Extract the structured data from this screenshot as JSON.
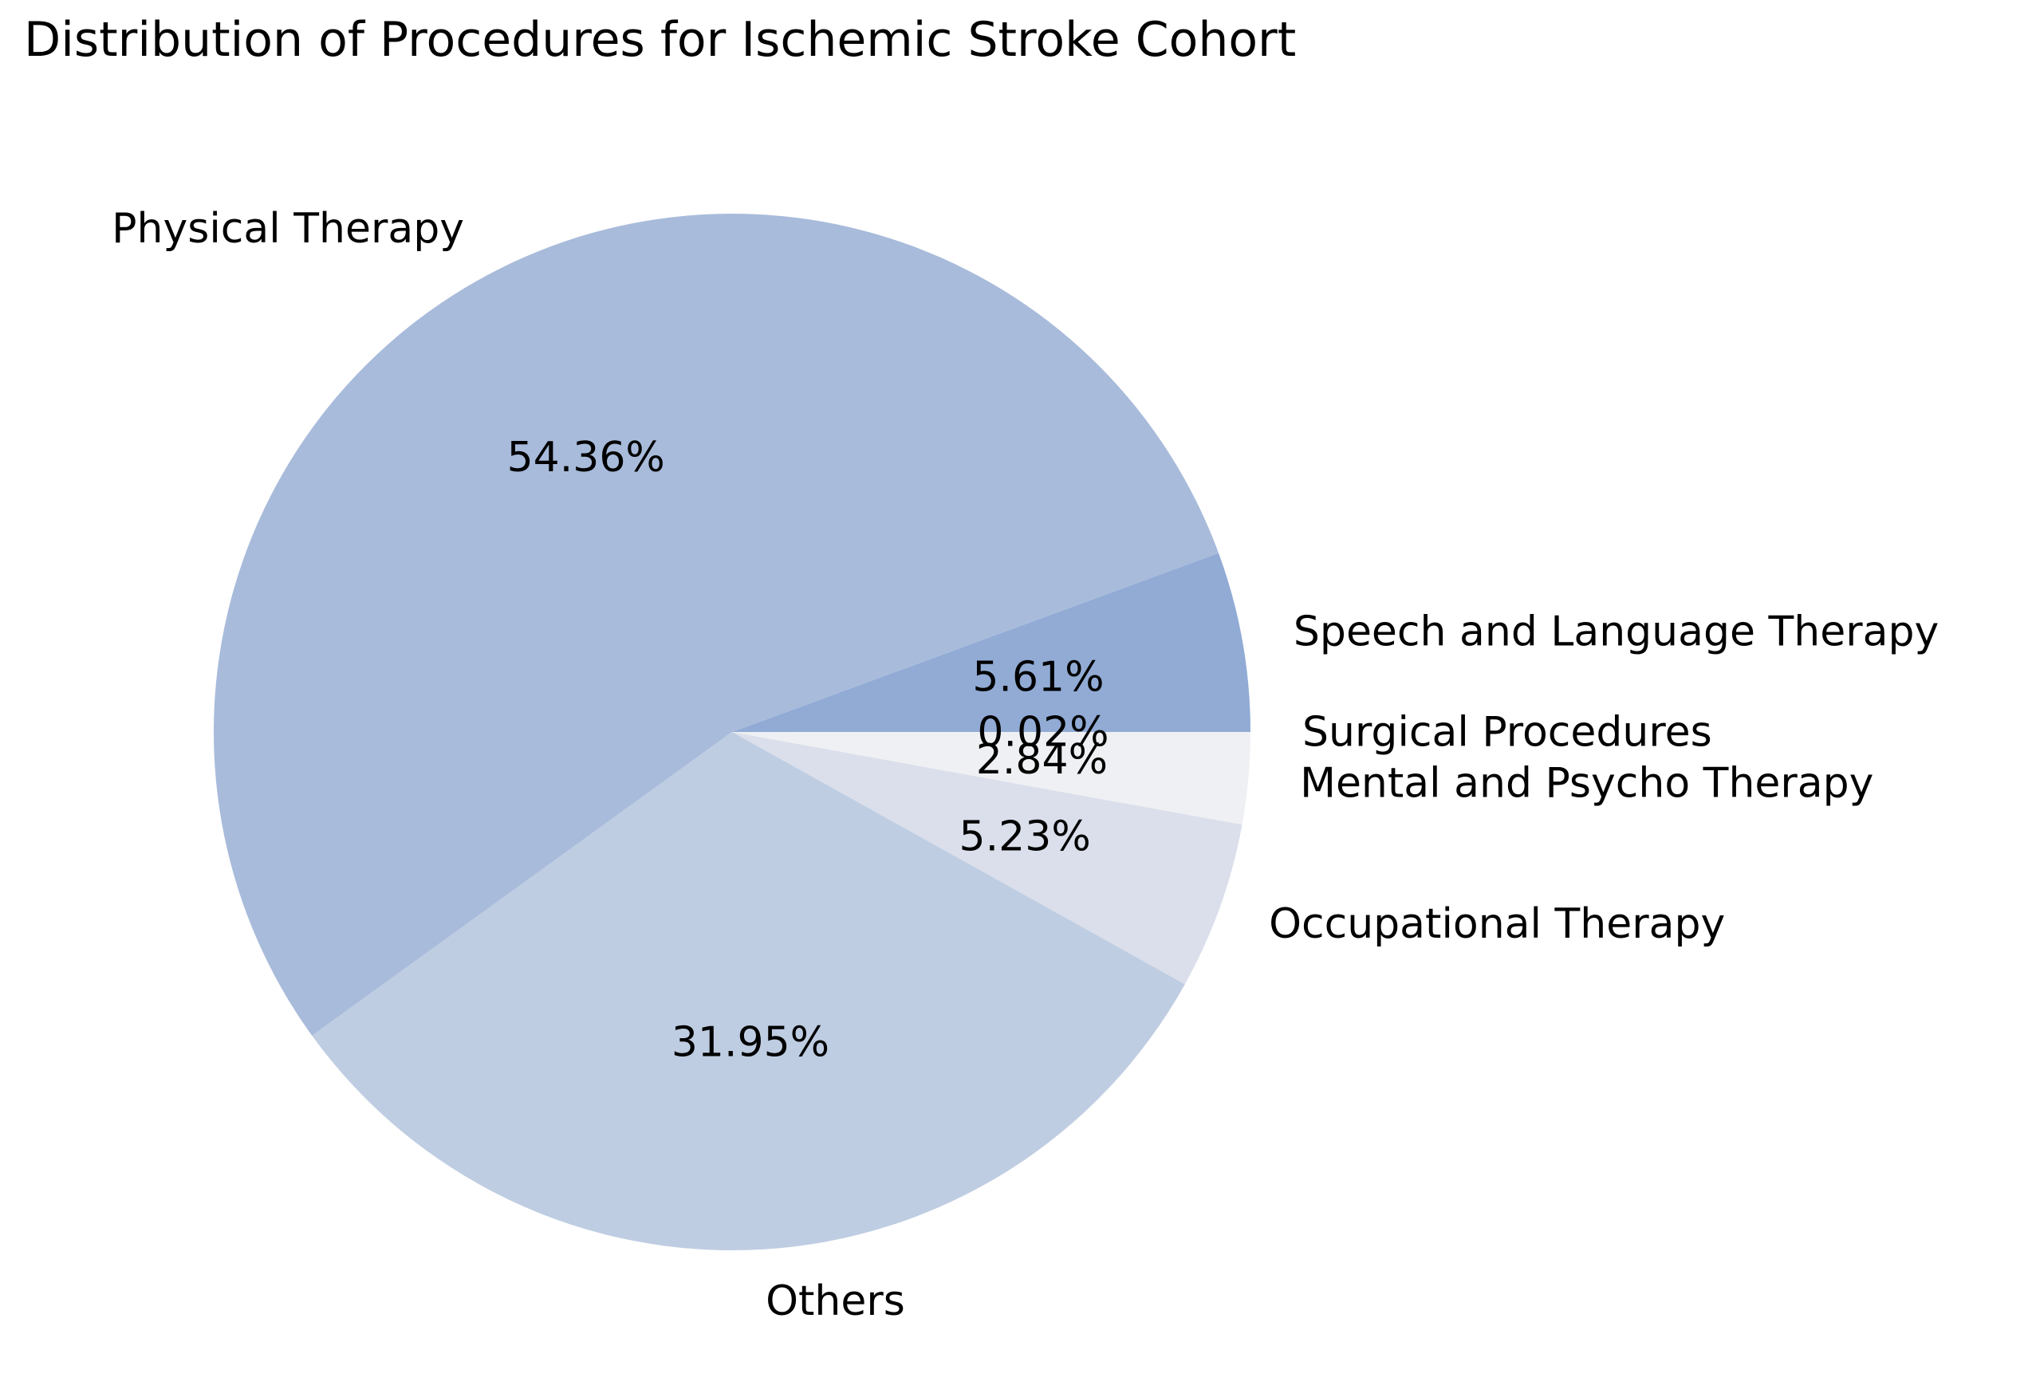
{
  "chart_data": {
    "type": "pie",
    "title": "Distribution of Procedures for Ischemic Stroke Cohort",
    "start_angle_deg": 0,
    "direction": "counterclockwise",
    "slices": [
      {
        "label": "Speech and Language Therapy",
        "value": 5.61,
        "pct_label": "5.61%",
        "color": "#91abd5"
      },
      {
        "label": "Physical Therapy",
        "value": 54.36,
        "pct_label": "54.36%",
        "color": "#a8bbdb"
      },
      {
        "label": "Others",
        "value": 31.95,
        "pct_label": "31.95%",
        "color": "#bfcde2"
      },
      {
        "label": "Occupational Therapy",
        "value": 5.23,
        "pct_label": "5.23%",
        "color": "#dadfeb"
      },
      {
        "label": "Mental and Psycho Therapy",
        "value": 2.84,
        "pct_label": "2.84%",
        "color": "#eff0f3"
      },
      {
        "label": "Surgical Procedures",
        "value": 0.02,
        "pct_label": "0.02%",
        "color": "#f3f3f3"
      }
    ]
  }
}
